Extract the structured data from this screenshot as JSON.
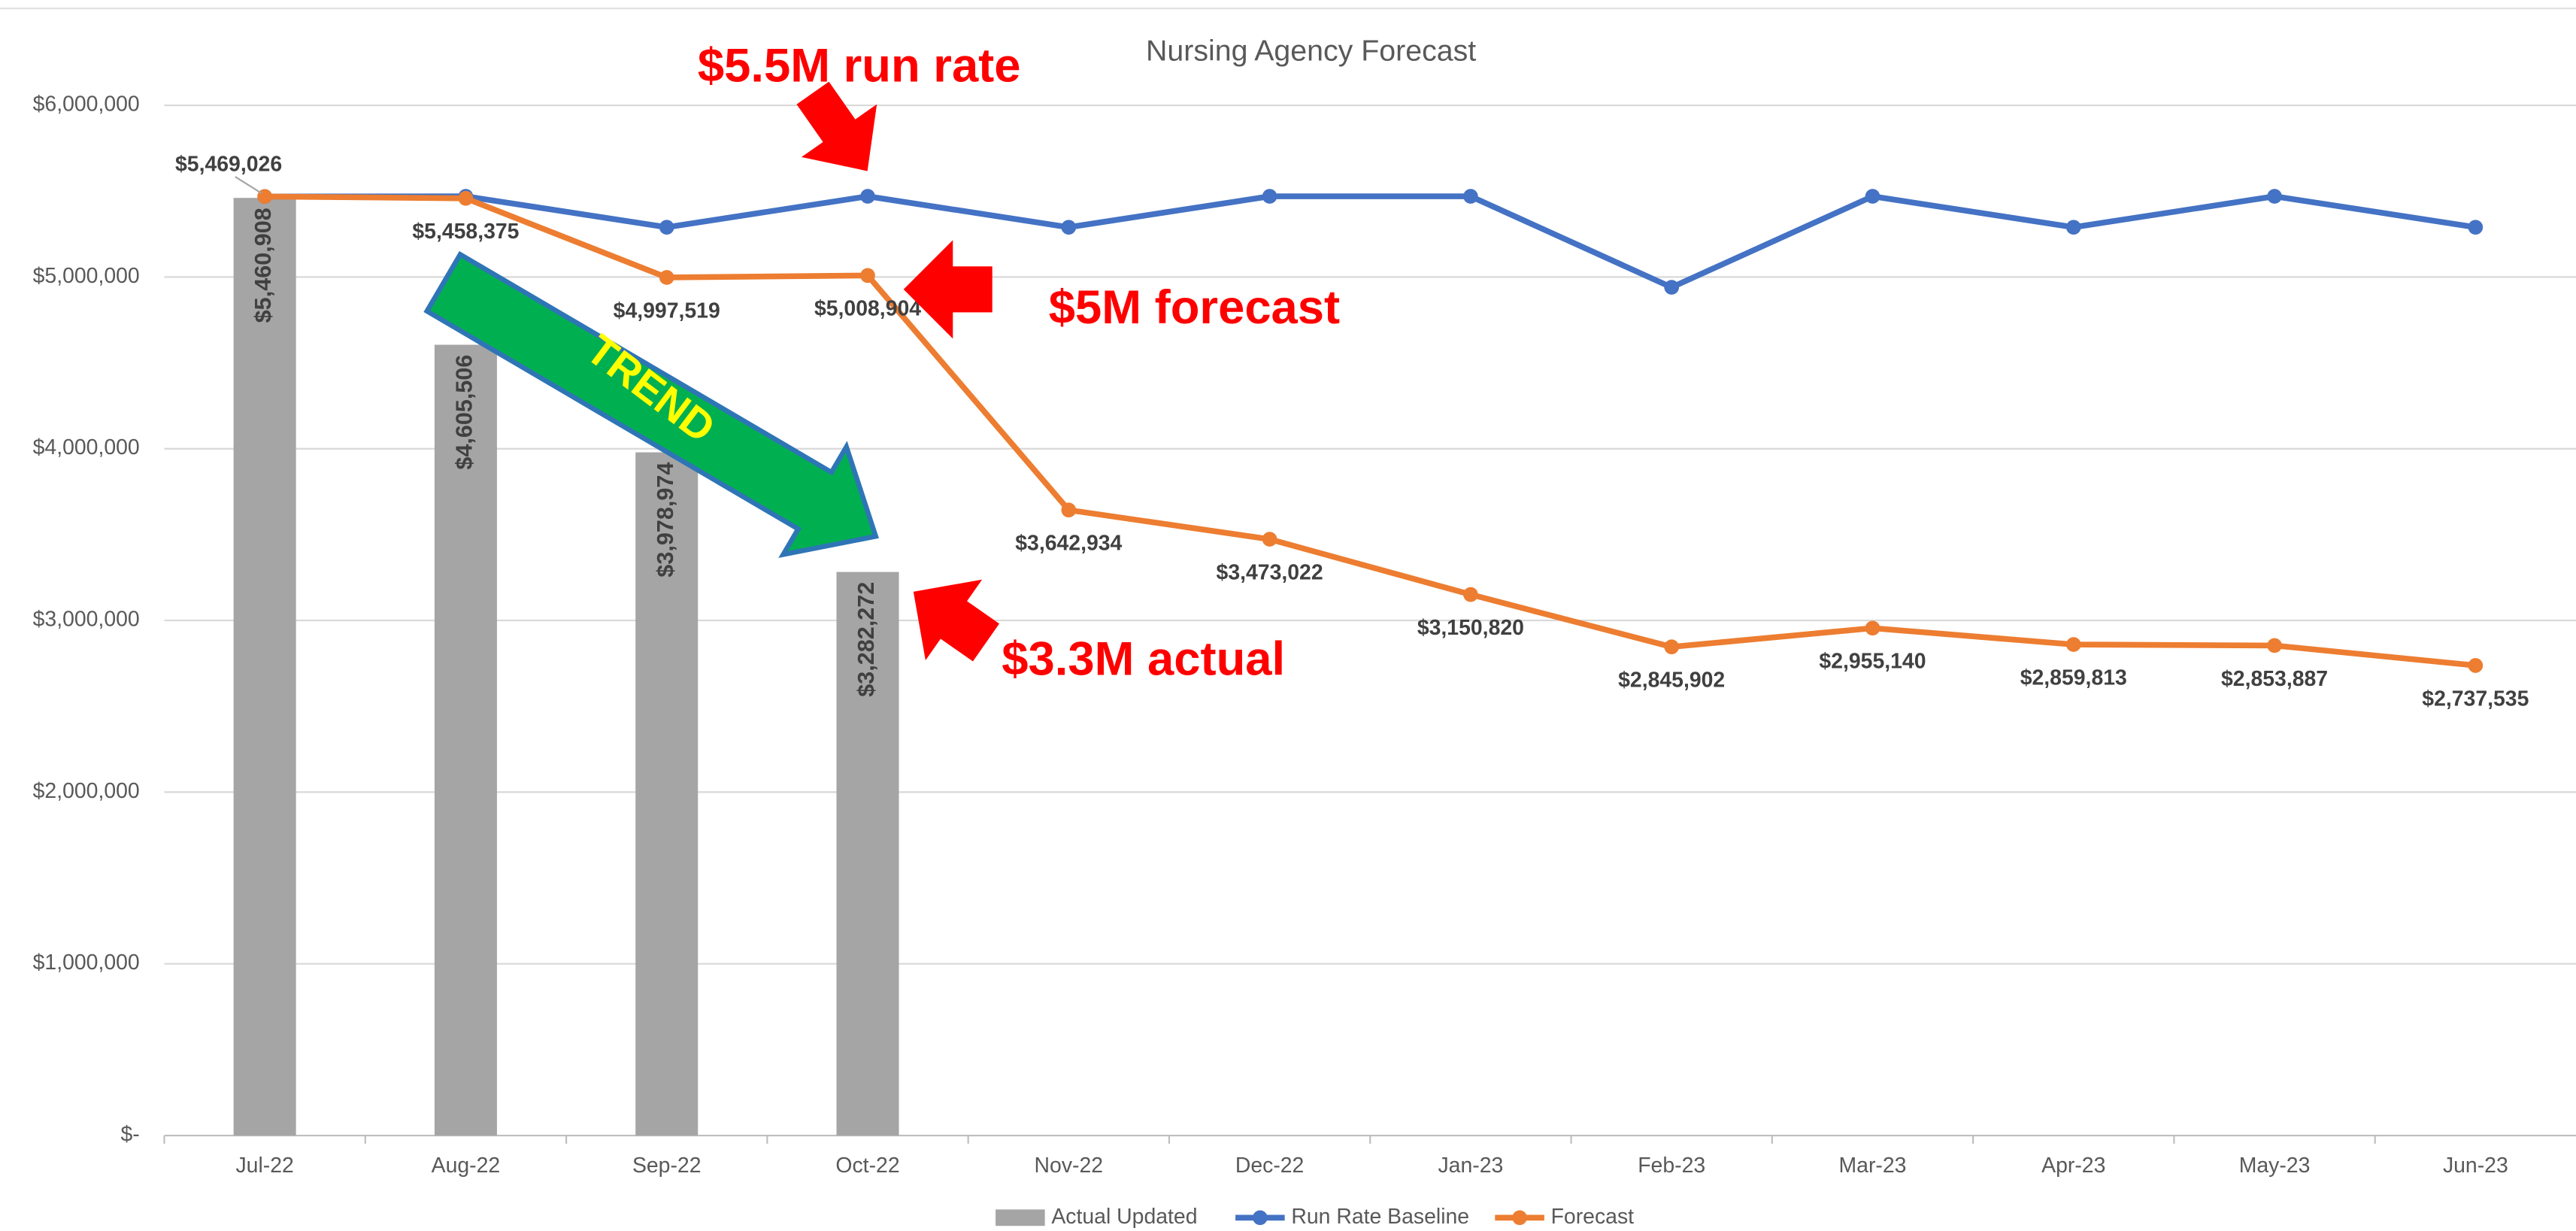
{
  "chart_data": {
    "type": "bar",
    "title": "Nursing Agency Forecast",
    "categories": [
      "Jul-22",
      "Aug-22",
      "Sep-22",
      "Oct-22",
      "Nov-22",
      "Dec-22",
      "Jan-23",
      "Feb-23",
      "Mar-23",
      "Apr-23",
      "May-23",
      "Jun-23"
    ],
    "series": [
      {
        "name": "Actual Updated",
        "type": "bar",
        "color": "#a5a5a5",
        "values": [
          5460908,
          4605506,
          3978974,
          3282272,
          null,
          null,
          null,
          null,
          null,
          null,
          null,
          null
        ],
        "value_labels": [
          "$5,460,908",
          "$4,605,506",
          "$3,978,974",
          "$3,282,272",
          null,
          null,
          null,
          null,
          null,
          null,
          null,
          null
        ]
      },
      {
        "name": "Run Rate Baseline",
        "type": "line",
        "color": "#4472c4",
        "values": [
          5469026,
          5470000,
          5290000,
          5470000,
          5290000,
          5470000,
          5470000,
          4940000,
          5470000,
          5290000,
          5470000,
          5290000
        ]
      },
      {
        "name": "Forecast",
        "type": "line",
        "color": "#ed7d31",
        "values": [
          5469026,
          5458375,
          4997519,
          5008904,
          3642934,
          3473022,
          3150820,
          2845902,
          2955140,
          2859813,
          2853887,
          2737535
        ],
        "value_labels": [
          "$5,469,026",
          "$5,458,375",
          "$4,997,519",
          "$5,008,904",
          "$3,642,934",
          "$3,473,022",
          "$3,150,820",
          "$2,845,902",
          "$2,955,140",
          "$2,859,813",
          "$2,853,887",
          "$2,737,535"
        ]
      }
    ],
    "ylim": [
      0,
      6000000
    ],
    "yticks": [
      {
        "value": 0,
        "label": "$-"
      },
      {
        "value": 1000000,
        "label": "$1,000,000"
      },
      {
        "value": 2000000,
        "label": "$2,000,000"
      },
      {
        "value": 3000000,
        "label": "$3,000,000"
      },
      {
        "value": 4000000,
        "label": "$4,000,000"
      },
      {
        "value": 5000000,
        "label": "$5,000,000"
      },
      {
        "value": 6000000,
        "label": "$6,000,000"
      }
    ],
    "grid": true,
    "legend": "bottom",
    "annotations": [
      "$5.5M run rate",
      "$5M forecast",
      "$3.3M actual",
      "TREND"
    ]
  }
}
